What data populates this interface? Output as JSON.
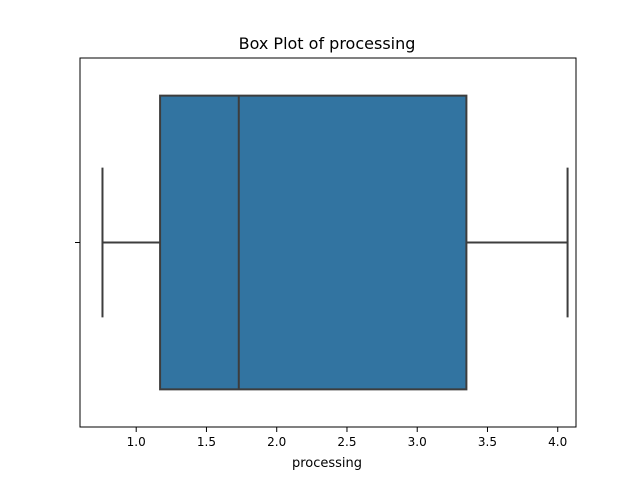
{
  "colors": {
    "box_fill": "#3274a1",
    "line": "#3d3d3d",
    "frame": "#000000"
  },
  "chart_data": {
    "type": "box",
    "orientation": "horizontal",
    "title": "Box Plot of processing",
    "xlabel": "processing",
    "ylabel": "",
    "xlim": [
      0.6,
      4.13
    ],
    "xticks": [
      1.0,
      1.5,
      2.0,
      2.5,
      3.0,
      3.5,
      4.0
    ],
    "xtick_labels": [
      "1.0",
      "1.5",
      "2.0",
      "2.5",
      "3.0",
      "3.5",
      "4.0"
    ],
    "yticks_labels": [
      ""
    ],
    "grid": false,
    "legend": "none",
    "boxes": [
      {
        "min": 0.76,
        "q1": 1.17,
        "median": 1.73,
        "q3": 3.35,
        "max": 4.07
      }
    ]
  }
}
